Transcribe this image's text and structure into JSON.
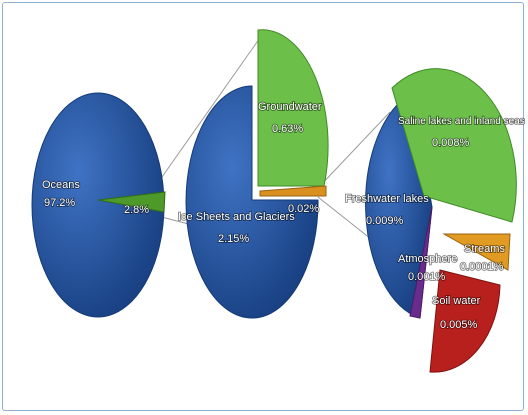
{
  "chart_data": [
    {
      "type": "pie",
      "slices": [
        {
          "label": "Oceans",
          "value_text": "97.2%",
          "value": 97.2,
          "color": "#1f4e9b"
        },
        {
          "label": "",
          "value_text": "2.8%",
          "value": 2.8,
          "color": "#4d9a2a"
        }
      ]
    },
    {
      "type": "pie",
      "slices": [
        {
          "label": "Ice Sheets and Glaciers",
          "value_text": "2.15%",
          "value": 2.15,
          "color": "#1f4e9b"
        },
        {
          "label": "Groundwater",
          "value_text": "0.63%",
          "value": 0.63,
          "color": "#6cc04a"
        },
        {
          "label": "",
          "value_text": "0.02%",
          "value": 0.02,
          "color": "#d9901f"
        }
      ]
    },
    {
      "type": "pie",
      "slices": [
        {
          "label": "Saline lakes and inland seas",
          "value_text": "0.008%",
          "value": 0.008,
          "color": "#6cc04a"
        },
        {
          "label": "Streams",
          "value_text": "0.0001%",
          "value": 0.0001,
          "color": "#e19a22"
        },
        {
          "label": "Soil water",
          "value_text": "0.005%",
          "value": 0.005,
          "color": "#b8201e"
        },
        {
          "label": "Atmosphere",
          "value_text": "0.001%",
          "value": 0.001,
          "color": "#6a2c8c"
        },
        {
          "label": "Freshwater lakes",
          "value_text": "0.009%",
          "value": 0.009,
          "color": "#1f4e9b"
        }
      ]
    }
  ]
}
